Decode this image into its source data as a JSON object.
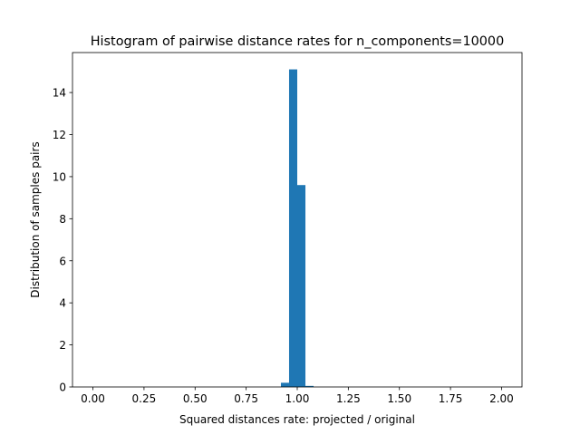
{
  "chart_data": {
    "type": "bar",
    "title": "Histogram of pairwise distance rates for n_components=10000",
    "xlabel": "Squared distances rate: projected / original",
    "ylabel": "Distribution of samples pairs",
    "xlim": [
      -0.1,
      2.1
    ],
    "ylim": [
      0,
      15.9
    ],
    "xticks": [
      "0.00",
      "0.25",
      "0.50",
      "0.75",
      "1.00",
      "1.25",
      "1.50",
      "1.75",
      "2.00"
    ],
    "yticks": [
      "0",
      "2",
      "4",
      "6",
      "8",
      "10",
      "12",
      "14"
    ],
    "bar_color": "#1f77b4",
    "bins": [
      {
        "x0": 0.92,
        "x1": 0.96,
        "value": 0.2
      },
      {
        "x0": 0.96,
        "x1": 1.0,
        "value": 15.1
      },
      {
        "x0": 1.0,
        "x1": 1.04,
        "value": 9.6
      },
      {
        "x0": 1.04,
        "x1": 1.08,
        "value": 0.05
      }
    ]
  }
}
